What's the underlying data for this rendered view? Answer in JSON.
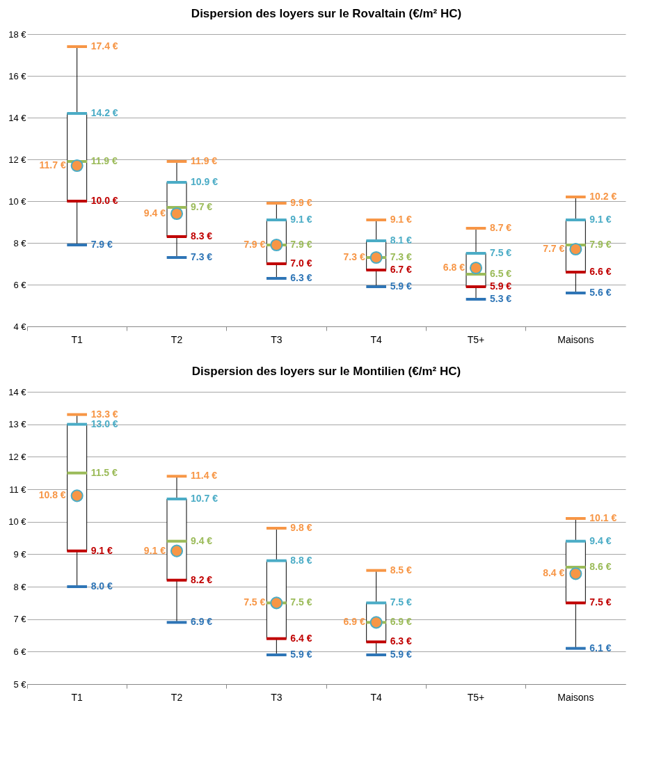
{
  "chart_data": [
    {
      "type": "box",
      "title": "Dispersion des loyers sur le Rovaltain (€/m² HC)",
      "categories": [
        "T1",
        "T2",
        "T3",
        "T4",
        "T5+",
        "Maisons"
      ],
      "boxes": [
        {
          "low": 7.9,
          "q1": 10.0,
          "median": 11.9,
          "q3": 14.2,
          "high": 17.4,
          "mean": 11.7
        },
        {
          "low": 7.3,
          "q1": 8.3,
          "median": 9.7,
          "q3": 10.9,
          "high": 11.9,
          "mean": 9.4
        },
        {
          "low": 6.3,
          "q1": 7.0,
          "median": 7.9,
          "q3": 9.1,
          "high": 9.9,
          "mean": 7.9
        },
        {
          "low": 5.9,
          "q1": 6.7,
          "median": 7.3,
          "q3": 8.1,
          "high": 9.1,
          "mean": 7.3
        },
        {
          "low": 5.3,
          "q1": 5.9,
          "median": 6.5,
          "q3": 7.5,
          "high": 8.7,
          "mean": 6.8
        },
        {
          "low": 5.6,
          "q1": 6.6,
          "median": 7.9,
          "q3": 9.1,
          "high": 10.2,
          "mean": 7.7
        }
      ],
      "ylim": [
        4,
        18
      ],
      "yticks": [
        {
          "value": 4,
          "label": "4 €"
        },
        {
          "value": 6,
          "label": "6 €"
        },
        {
          "value": 8,
          "label": "8 €"
        },
        {
          "value": 10,
          "label": "10 €"
        },
        {
          "value": 12,
          "label": "12 €"
        },
        {
          "value": 14,
          "label": "14 €"
        },
        {
          "value": 16,
          "label": "16 €"
        },
        {
          "value": 18,
          "label": "18 €"
        }
      ],
      "grid": "y",
      "annotations": [
        {
          "text": "7.9 €",
          "x": "T1",
          "y": 7.9
        },
        {
          "text": "10.0 €",
          "x": "T1",
          "y": 10.0
        },
        {
          "text": "11.9 €",
          "x": "T1",
          "y": 11.9
        },
        {
          "text": "14.2 €",
          "x": "T1",
          "y": 14.2
        },
        {
          "text": "17.4 €",
          "x": "T1",
          "y": 17.4
        },
        {
          "text": "11.7 €",
          "x": "T1",
          "y": 11.7
        },
        {
          "text": "7.3 €",
          "x": "T2",
          "y": 7.3
        },
        {
          "text": "8.3 €",
          "x": "T2",
          "y": 8.3
        },
        {
          "text": "9.7 €",
          "x": "T2",
          "y": 9.7
        },
        {
          "text": "10.9 €",
          "x": "T2",
          "y": 10.9
        },
        {
          "text": "11.9 €",
          "x": "T2",
          "y": 11.9
        },
        {
          "text": "9.4 €",
          "x": "T2",
          "y": 9.4
        },
        {
          "text": "6.3 €",
          "x": "T3",
          "y": 6.3
        },
        {
          "text": "7.0 €",
          "x": "T3",
          "y": 7.0
        },
        {
          "text": "7.9 €",
          "x": "T3",
          "y": 7.9
        },
        {
          "text": "9.1 €",
          "x": "T3",
          "y": 9.1
        },
        {
          "text": "9.9 €",
          "x": "T3",
          "y": 9.9
        },
        {
          "text": "7.9 €",
          "x": "T3",
          "y": 7.9
        },
        {
          "text": "5.9 €",
          "x": "T4",
          "y": 5.9
        },
        {
          "text": "6.7 €",
          "x": "T4",
          "y": 6.7
        },
        {
          "text": "7.3 €",
          "x": "T4",
          "y": 7.3
        },
        {
          "text": "8.1 €",
          "x": "T4",
          "y": 8.1
        },
        {
          "text": "9.1 €",
          "x": "T4",
          "y": 9.1
        },
        {
          "text": "7.3 €",
          "x": "T4",
          "y": 7.3
        },
        {
          "text": "5.3 €",
          "x": "T5+",
          "y": 5.3
        },
        {
          "text": "5.9 €",
          "x": "T5+",
          "y": 5.9
        },
        {
          "text": "6.5 €",
          "x": "T5+",
          "y": 6.5
        },
        {
          "text": "7.5 €",
          "x": "T5+",
          "y": 7.5
        },
        {
          "text": "8.7 €",
          "x": "T5+",
          "y": 8.7
        },
        {
          "text": "6.8 €",
          "x": "T5+",
          "y": 6.8
        },
        {
          "text": "5.6 €",
          "x": "Maisons",
          "y": 5.6
        },
        {
          "text": "6.6 €",
          "x": "Maisons",
          "y": 6.6
        },
        {
          "text": "7.9 €",
          "x": "Maisons",
          "y": 7.9
        },
        {
          "text": "9.1 €",
          "x": "Maisons",
          "y": 9.1
        },
        {
          "text": "10.2 €",
          "x": "Maisons",
          "y": 10.2
        },
        {
          "text": "7.7 €",
          "x": "Maisons",
          "y": 7.7
        }
      ]
    },
    {
      "type": "box",
      "title": "Dispersion des loyers sur le Montilien (€/m² HC)",
      "categories": [
        "T1",
        "T2",
        "T3",
        "T4",
        "T5+",
        "Maisons"
      ],
      "boxes": [
        {
          "low": 8.0,
          "q1": 9.1,
          "median": 11.5,
          "q3": 13.0,
          "high": 13.3,
          "mean": 10.8
        },
        {
          "low": 6.9,
          "q1": 8.2,
          "median": 9.4,
          "q3": 10.7,
          "high": 11.4,
          "mean": 9.1
        },
        {
          "low": 5.9,
          "q1": 6.4,
          "median": 7.5,
          "q3": 8.8,
          "high": 9.8,
          "mean": 7.5
        },
        {
          "low": 5.9,
          "q1": 6.3,
          "median": 6.9,
          "q3": 7.5,
          "high": 8.5,
          "mean": 6.9
        },
        null,
        {
          "low": 6.1,
          "q1": 7.5,
          "median": 8.6,
          "q3": 9.4,
          "high": 10.1,
          "mean": 8.4
        }
      ],
      "ylim": [
        5,
        14
      ],
      "yticks": [
        {
          "value": 5,
          "label": "5 €"
        },
        {
          "value": 6,
          "label": "6 €"
        },
        {
          "value": 7,
          "label": "7 €"
        },
        {
          "value": 8,
          "label": "8 €"
        },
        {
          "value": 9,
          "label": "9 €"
        },
        {
          "value": 10,
          "label": "10 €"
        },
        {
          "value": 11,
          "label": "11 €"
        },
        {
          "value": 12,
          "label": "12 €"
        },
        {
          "value": 13,
          "label": "13 €"
        },
        {
          "value": 14,
          "label": "14 €"
        }
      ],
      "grid": "y",
      "annotations": [
        {
          "text": "8.0 €",
          "x": "T1",
          "y": 8.0
        },
        {
          "text": "9.1 €",
          "x": "T1",
          "y": 9.1
        },
        {
          "text": "11.5 €",
          "x": "T1",
          "y": 11.5
        },
        {
          "text": "13.0 €",
          "x": "T1",
          "y": 13.0
        },
        {
          "text": "13.3 €",
          "x": "T1",
          "y": 13.3
        },
        {
          "text": "10.8 €",
          "x": "T1",
          "y": 10.8
        },
        {
          "text": "6.9 €",
          "x": "T2",
          "y": 6.9
        },
        {
          "text": "8.2 €",
          "x": "T2",
          "y": 8.2
        },
        {
          "text": "9.4 €",
          "x": "T2",
          "y": 9.4
        },
        {
          "text": "10.7 €",
          "x": "T2",
          "y": 10.7
        },
        {
          "text": "11.4 €",
          "x": "T2",
          "y": 11.4
        },
        {
          "text": "9.1 €",
          "x": "T2",
          "y": 9.1
        },
        {
          "text": "5.9 €",
          "x": "T3",
          "y": 5.9
        },
        {
          "text": "6.4 €",
          "x": "T3",
          "y": 6.4
        },
        {
          "text": "7.5 €",
          "x": "T3",
          "y": 7.5
        },
        {
          "text": "8.8 €",
          "x": "T3",
          "y": 8.8
        },
        {
          "text": "9.8 €",
          "x": "T3",
          "y": 9.8
        },
        {
          "text": "7.5 €",
          "x": "T3",
          "y": 7.5
        },
        {
          "text": "5.9 €",
          "x": "T4",
          "y": 5.9
        },
        {
          "text": "6.3 €",
          "x": "T4",
          "y": 6.3
        },
        {
          "text": "6.9 €",
          "x": "T4",
          "y": 6.9
        },
        {
          "text": "7.5 €",
          "x": "T4",
          "y": 7.5
        },
        {
          "text": "8.5 €",
          "x": "T4",
          "y": 8.5
        },
        {
          "text": "6.9 €",
          "x": "T4",
          "y": 6.9
        },
        {
          "text": "6.1 €",
          "x": "Maisons",
          "y": 6.1
        },
        {
          "text": "7.5 €",
          "x": "Maisons",
          "y": 7.5
        },
        {
          "text": "8.6 €",
          "x": "Maisons",
          "y": 8.6
        },
        {
          "text": "9.4 €",
          "x": "Maisons",
          "y": 9.4
        },
        {
          "text": "10.1 €",
          "x": "Maisons",
          "y": 10.1
        },
        {
          "text": "8.4 €",
          "x": "Maisons",
          "y": 8.4
        }
      ]
    }
  ]
}
